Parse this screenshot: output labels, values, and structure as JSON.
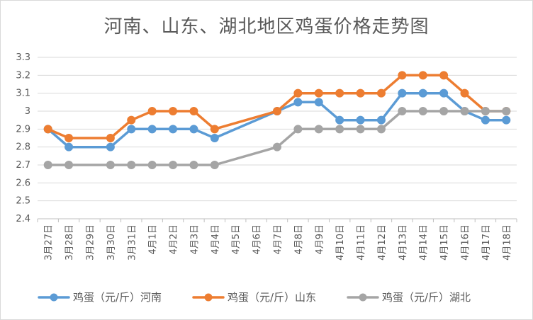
{
  "chart_data": {
    "type": "line",
    "title": "河南、山东、湖北地区鸡蛋价格走势图",
    "xlabel": "",
    "ylabel": "",
    "ylim": [
      2.4,
      3.3
    ],
    "yticks": [
      "2.4",
      "2.5",
      "2.6",
      "2.7",
      "2.8",
      "2.9",
      "3",
      "3.1",
      "3.2",
      "3.3"
    ],
    "grid": true,
    "legend_position": "bottom",
    "categories": [
      "3月27日",
      "3月28日",
      "3月29日",
      "3月30日",
      "3月31日",
      "4月1日",
      "4月2日",
      "4月3日",
      "4月4日",
      "4月5日",
      "4月6日",
      "4月7日",
      "4月8日",
      "4月9日",
      "4月10日",
      "4月11日",
      "4月12日",
      "4月13日",
      "4月14日",
      "4月15日",
      "4月16日",
      "4月17日",
      "4月18日"
    ],
    "series": [
      {
        "name": "鸡蛋（元/斤）河南",
        "color": "#5b9bd5",
        "values": [
          2.9,
          2.8,
          null,
          2.8,
          2.9,
          2.9,
          2.9,
          2.9,
          2.85,
          null,
          null,
          3.0,
          3.05,
          3.05,
          2.95,
          2.95,
          2.95,
          3.1,
          3.1,
          3.1,
          3.0,
          2.95,
          2.95
        ]
      },
      {
        "name": "鸡蛋（元/斤）山东",
        "color": "#ed7d31",
        "values": [
          2.9,
          2.85,
          null,
          2.85,
          2.95,
          3.0,
          3.0,
          3.0,
          2.9,
          null,
          null,
          3.0,
          3.1,
          3.1,
          3.1,
          3.1,
          3.1,
          3.2,
          3.2,
          3.2,
          3.1,
          3.0,
          3.0
        ]
      },
      {
        "name": "鸡蛋（元/斤）湖北",
        "color": "#a5a5a5",
        "values": [
          2.7,
          2.7,
          null,
          2.7,
          2.7,
          2.7,
          2.7,
          2.7,
          2.7,
          null,
          null,
          2.8,
          2.9,
          2.9,
          2.9,
          2.9,
          2.9,
          3.0,
          3.0,
          3.0,
          3.0,
          3.0,
          3.0
        ]
      }
    ]
  }
}
